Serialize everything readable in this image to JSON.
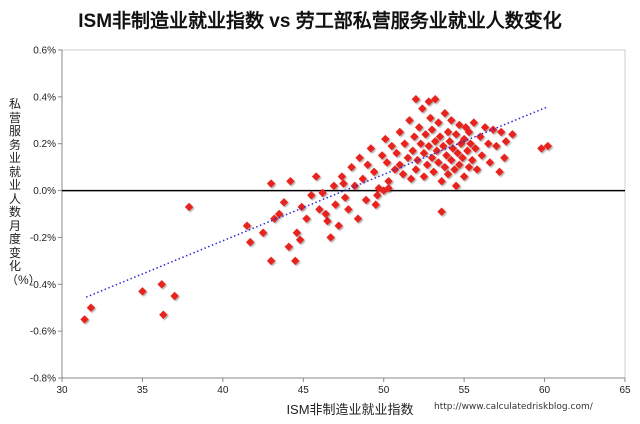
{
  "chart_data": {
    "type": "scatter",
    "title": "ISM非制造业就业指数 vs 劳工部私营服务业就业人数变化",
    "xlabel": "ISM非制造业就业指数",
    "ylabel": "私营服务业就业人数月度变化（%）",
    "xlim": [
      30,
      65
    ],
    "ylim": [
      -0.8,
      0.6
    ],
    "xticks": [
      "30",
      "35",
      "40",
      "45",
      "50",
      "55",
      "60",
      "65"
    ],
    "yticks": [
      "-0.8%",
      "-0.6%",
      "-0.4%",
      "-0.2%",
      "0.0%",
      "0.2%",
      "0.4%",
      "0.6%"
    ],
    "grid": false,
    "zero_line": true,
    "colors": {
      "points": "#e8221b",
      "highlight": "#3a4fe0",
      "trend": "#2b2bd6"
    },
    "trendline": {
      "style": "dotted",
      "x": [
        31.5,
        60.1
      ],
      "y": [
        -0.455,
        0.355
      ]
    },
    "highlight": [
      {
        "x": 55.8,
        "y": 0.235
      }
    ],
    "series": [
      {
        "values": [
          [
            31.4,
            -0.55
          ],
          [
            31.8,
            -0.5
          ],
          [
            35,
            -0.43
          ],
          [
            36.2,
            -0.4
          ],
          [
            36.3,
            -0.53
          ],
          [
            37,
            -0.45
          ],
          [
            37.9,
            -0.07
          ],
          [
            41.5,
            -0.15
          ],
          [
            41.7,
            -0.22
          ],
          [
            42.5,
            -0.18
          ],
          [
            43,
            -0.3
          ],
          [
            43.2,
            -0.12
          ],
          [
            43,
            0.03
          ],
          [
            43.5,
            -0.1
          ],
          [
            43.8,
            -0.05
          ],
          [
            44.1,
            -0.24
          ],
          [
            44.2,
            0.04
          ],
          [
            44.5,
            -0.3
          ],
          [
            44.6,
            -0.18
          ],
          [
            44.8,
            -0.21
          ],
          [
            44.9,
            -0.07
          ],
          [
            45.2,
            -0.12
          ],
          [
            45.5,
            -0.02
          ],
          [
            45.8,
            0.06
          ],
          [
            46,
            -0.08
          ],
          [
            46.2,
            -0.01
          ],
          [
            46.5,
            -0.13
          ],
          [
            46.7,
            -0.2
          ],
          [
            46.9,
            0.02
          ],
          [
            47,
            -0.06
          ],
          [
            47.2,
            -0.15
          ],
          [
            47.4,
            0.06
          ],
          [
            47.6,
            -0.03
          ],
          [
            47.8,
            -0.08
          ],
          [
            48,
            0.1
          ],
          [
            48.2,
            0.02
          ],
          [
            48.4,
            -0.12
          ],
          [
            48.5,
            0.14
          ],
          [
            48.7,
            0.05
          ],
          [
            48.9,
            -0.04
          ],
          [
            49,
            0.11
          ],
          [
            49.2,
            0.18
          ],
          [
            49.4,
            0.08
          ],
          [
            49.5,
            -0.06
          ],
          [
            49.7,
            0.01
          ],
          [
            49.9,
            0.15
          ],
          [
            50,
            0
          ],
          [
            50.1,
            0.22
          ],
          [
            50.2,
            0.12
          ],
          [
            50.3,
            0.04
          ],
          [
            50.5,
            0.19
          ],
          [
            50.7,
            0.09
          ],
          [
            50.8,
            0.16
          ],
          [
            51,
            0.25
          ],
          [
            51,
            0.11
          ],
          [
            51.2,
            0.07
          ],
          [
            51.3,
            0.2
          ],
          [
            51.5,
            0.14
          ],
          [
            51.6,
            0.3
          ],
          [
            51.7,
            0.05
          ],
          [
            51.8,
            0.17
          ],
          [
            51.9,
            0.23
          ],
          [
            52,
            0.09
          ],
          [
            52,
            0.39
          ],
          [
            52.1,
            0.13
          ],
          [
            52.2,
            0.27
          ],
          [
            52.3,
            0.2
          ],
          [
            52.4,
            0.35
          ],
          [
            52.5,
            0.06
          ],
          [
            52.5,
            0.16
          ],
          [
            52.6,
            0.24
          ],
          [
            52.7,
            0.11
          ],
          [
            52.8,
            0.38
          ],
          [
            52.8,
            0.19
          ],
          [
            52.9,
            0.31
          ],
          [
            53,
            0.14
          ],
          [
            53,
            0.26
          ],
          [
            53.1,
            0.08
          ],
          [
            53.2,
            0.21
          ],
          [
            53.2,
            0.39
          ],
          [
            53.3,
            0.17
          ],
          [
            53.4,
            0.12
          ],
          [
            53.4,
            0.29
          ],
          [
            53.5,
            0.23
          ],
          [
            53.6,
            -0.09
          ],
          [
            53.6,
            0.04
          ],
          [
            53.7,
            0.19
          ],
          [
            53.8,
            0.33
          ],
          [
            53.8,
            0.1
          ],
          [
            53.9,
            0.15
          ],
          [
            54,
            0.25
          ],
          [
            54,
            0.07
          ],
          [
            54.1,
            0.21
          ],
          [
            54.2,
            0.13
          ],
          [
            54.2,
            0.3
          ],
          [
            54.3,
            0.18
          ],
          [
            54.4,
            0.09
          ],
          [
            54.5,
            0.24
          ],
          [
            54.5,
            0.02
          ],
          [
            54.6,
            0.16
          ],
          [
            54.7,
            0.28
          ],
          [
            54.7,
            0.11
          ],
          [
            54.8,
            0.2
          ],
          [
            54.9,
            0.14
          ],
          [
            55,
            0.22
          ],
          [
            55,
            0.06
          ],
          [
            55.1,
            0.27
          ],
          [
            55.2,
            0.17
          ],
          [
            55.3,
            0.1
          ],
          [
            55.3,
            0.25
          ],
          [
            55.4,
            0.2
          ],
          [
            55.5,
            0.13
          ],
          [
            55.6,
            0.29
          ],
          [
            55.7,
            0.18
          ],
          [
            55.8,
            0.09
          ],
          [
            56,
            0.23
          ],
          [
            56.1,
            0.15
          ],
          [
            56.3,
            0.27
          ],
          [
            56.5,
            0.2
          ],
          [
            56.6,
            0.12
          ],
          [
            56.8,
            0.26
          ],
          [
            57,
            0.19
          ],
          [
            57.2,
            0.08
          ],
          [
            57.3,
            0.25
          ],
          [
            57.5,
            0.14
          ],
          [
            57.6,
            0.21
          ],
          [
            58,
            0.24
          ],
          [
            59.8,
            0.18
          ],
          [
            60.2,
            0.19
          ],
          [
            50.3,
            0.01
          ],
          [
            47.5,
            0.03
          ],
          [
            46.4,
            -0.1
          ],
          [
            49.6,
            -0.02
          ]
        ]
      }
    ]
  },
  "watermark": "http://www.calculatedriskblog.com/"
}
